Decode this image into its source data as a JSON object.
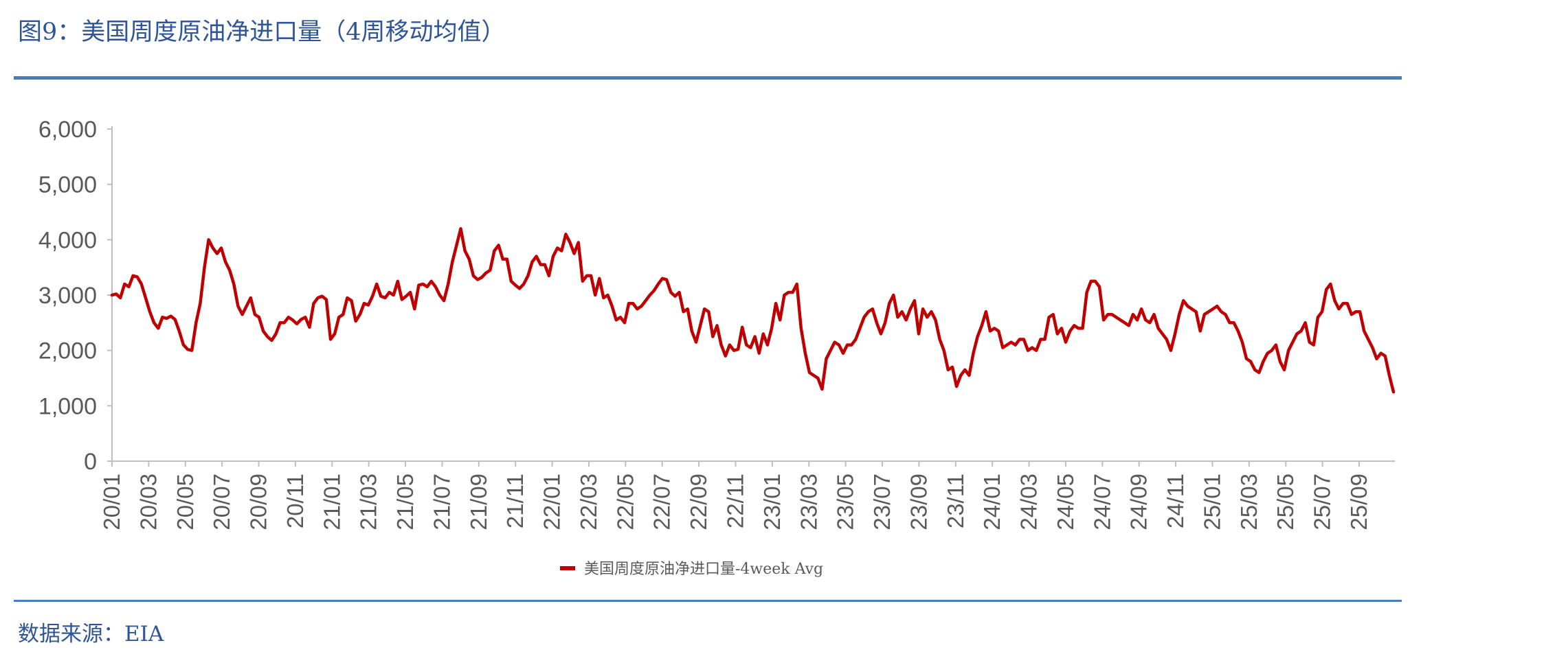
{
  "header": {
    "title": "图9：美国周度原油净进口量（4周移动均值）"
  },
  "footer": {
    "source": "数据来源：EIA"
  },
  "colors": {
    "series": "#C00000",
    "rules": "#4A7BC1",
    "axis": "#BFBFBF",
    "text": "#595959",
    "title": "#2E5597"
  },
  "chart_data": {
    "type": "line",
    "title": "",
    "xlabel": "",
    "ylabel": "",
    "ylim": [
      0,
      6000
    ],
    "yticks": [
      "0",
      "1,000",
      "2,000",
      "3,000",
      "4,000",
      "5,000",
      "6,000"
    ],
    "xticks": [
      "20/01",
      "20/03",
      "20/05",
      "20/07",
      "20/09",
      "20/11",
      "21/01",
      "21/03",
      "21/05",
      "21/07",
      "21/09",
      "21/11",
      "22/01",
      "22/03",
      "22/05",
      "22/07",
      "22/09",
      "22/11",
      "23/01",
      "23/03",
      "23/05",
      "23/07",
      "23/09",
      "23/11",
      "24/01",
      "24/03",
      "24/05",
      "24/07",
      "24/09",
      "24/11",
      "25/01",
      "25/03",
      "25/05",
      "25/07",
      "25/09"
    ],
    "grid": false,
    "legend_position": "bottom",
    "series": [
      {
        "name": "美国周度原油净进口量-4week Avg",
        "color": "#C00000",
        "values": [
          3000,
          3020,
          2950,
          3200,
          3150,
          3350,
          3330,
          3200,
          2950,
          2700,
          2500,
          2400,
          2600,
          2580,
          2620,
          2560,
          2350,
          2100,
          2020,
          2000,
          2500,
          2850,
          3500,
          4000,
          3850,
          3750,
          3850,
          3600,
          3450,
          3200,
          2800,
          2650,
          2800,
          2950,
          2650,
          2600,
          2350,
          2250,
          2180,
          2300,
          2500,
          2500,
          2600,
          2550,
          2480,
          2560,
          2600,
          2420,
          2850,
          2950,
          2980,
          2920,
          2200,
          2300,
          2600,
          2650,
          2950,
          2900,
          2530,
          2650,
          2850,
          2820,
          2980,
          3200,
          2980,
          2950,
          3050,
          3000,
          3250,
          2920,
          2980,
          3050,
          2750,
          3180,
          3200,
          3150,
          3250,
          3150,
          3000,
          2900,
          3200,
          3600,
          3900,
          4200,
          3800,
          3650,
          3350,
          3280,
          3320,
          3400,
          3450,
          3800,
          3900,
          3650,
          3650,
          3250,
          3180,
          3120,
          3200,
          3350,
          3600,
          3700,
          3550,
          3550,
          3350,
          3700,
          3850,
          3800,
          4100,
          3950,
          3750,
          3950,
          3250,
          3350,
          3350,
          3000,
          3300,
          2950,
          3000,
          2800,
          2550,
          2600,
          2500,
          2850,
          2850,
          2750,
          2800,
          2900,
          3000,
          3080,
          3200,
          3300,
          3280,
          3050,
          2980,
          3050,
          2700,
          2750,
          2350,
          2150,
          2450,
          2750,
          2700,
          2250,
          2450,
          2100,
          1900,
          2100,
          2000,
          2020,
          2420,
          2100,
          2050,
          2250,
          1950,
          2300,
          2100,
          2400,
          2850,
          2550,
          3000,
          3050,
          3050,
          3200,
          2400,
          1950,
          1600,
          1550,
          1500,
          1300,
          1850,
          2000,
          2150,
          2100,
          1950,
          2100,
          2100,
          2200,
          2400,
          2600,
          2700,
          2750,
          2500,
          2300,
          2500,
          2850,
          3000,
          2600,
          2700,
          2550,
          2750,
          2900,
          2300,
          2750,
          2600,
          2700,
          2550,
          2200,
          2000,
          1650,
          1700,
          1350,
          1550,
          1650,
          1550,
          1950,
          2250,
          2450,
          2700,
          2350,
          2400,
          2350,
          2050,
          2100,
          2150,
          2100,
          2200,
          2200,
          2000,
          2050,
          2000,
          2200,
          2200,
          2600,
          2650,
          2300,
          2400,
          2150,
          2350,
          2450,
          2400,
          2400,
          3050,
          3250,
          3250,
          3150,
          2550,
          2650,
          2650,
          2600,
          2550,
          2500,
          2450,
          2650,
          2550,
          2750,
          2550,
          2500,
          2650,
          2400,
          2300,
          2200,
          2000,
          2300,
          2650,
          2900,
          2800,
          2750,
          2700,
          2350,
          2650,
          2700,
          2750,
          2800,
          2700,
          2650,
          2500,
          2500,
          2350,
          2150,
          1850,
          1800,
          1650,
          1600,
          1800,
          1950,
          2000,
          2100,
          1800,
          1650,
          2000,
          2150,
          2300,
          2350,
          2500,
          2150,
          2100,
          2600,
          2700,
          3100,
          3200,
          2900,
          2750,
          2850,
          2850,
          2650,
          2700,
          2700,
          2350,
          2200,
          2050,
          1850,
          1950,
          1900,
          1550,
          1250
        ]
      }
    ]
  }
}
